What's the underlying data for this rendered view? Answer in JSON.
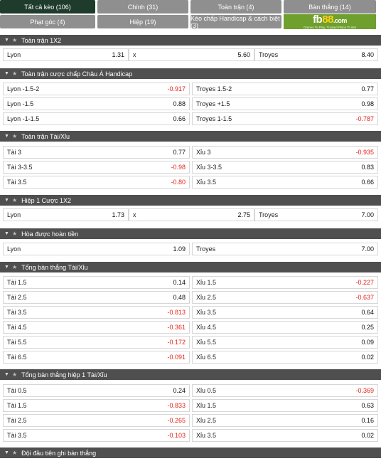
{
  "tabs": {
    "row1": [
      "Tất cả kèo (106)",
      "Chính (31)",
      "Toàn trận (4)",
      "Bàn thắng (14)"
    ],
    "row2": [
      "Phạt góc (4)",
      "Hiệp (19)",
      "Kèo chấp Handicap & cách biệt (3)"
    ]
  },
  "logo": {
    "fb": "fb",
    "n88": "88",
    "com": ".com",
    "tagline": "Games To Play, Trusted Place To Bet"
  },
  "sections": [
    {
      "title": "Toàn trận 1X2",
      "rows": [
        [
          [
            "Lyon",
            "1.31"
          ],
          [
            "x",
            "5.60"
          ],
          [
            "Troyes",
            "8.40"
          ]
        ]
      ]
    },
    {
      "title": "Toàn trận cược chấp Châu Á Handicap",
      "rows": [
        [
          [
            "Lyon -1.5-2",
            "-0.917"
          ],
          [
            "Troyes 1.5-2",
            "0.77"
          ]
        ],
        [
          [
            "Lyon -1.5",
            "0.88"
          ],
          [
            "Troyes +1.5",
            "0.98"
          ]
        ],
        [
          [
            "Lyon -1-1.5",
            "0.66"
          ],
          [
            "Troyes 1-1.5",
            "-0.787"
          ]
        ]
      ]
    },
    {
      "title": "Toàn trận Tài/Xỉu",
      "rows": [
        [
          [
            "Tài 3",
            "0.77"
          ],
          [
            "Xỉu 3",
            "-0.935"
          ]
        ],
        [
          [
            "Tài 3-3.5",
            "-0.98"
          ],
          [
            "Xỉu 3-3.5",
            "0.83"
          ]
        ],
        [
          [
            "Tài 3.5",
            "-0.80"
          ],
          [
            "Xỉu 3.5",
            "0.66"
          ]
        ]
      ]
    },
    {
      "title": "Hiệp 1 Cược 1X2",
      "rows": [
        [
          [
            "Lyon",
            "1.73"
          ],
          [
            "x",
            "2.75"
          ],
          [
            "Troyes",
            "7.00"
          ]
        ]
      ]
    },
    {
      "title": "Hòa được hoàn tiền",
      "rows": [
        [
          [
            "Lyon",
            "1.09"
          ],
          [
            "Troyes",
            "7.00"
          ]
        ]
      ]
    },
    {
      "title": "Tổng bàn thắng Tài/Xỉu",
      "rows": [
        [
          [
            "Tài 1.5",
            "0.14"
          ],
          [
            "Xỉu 1.5",
            "-0.227"
          ]
        ],
        [
          [
            "Tài 2.5",
            "0.48"
          ],
          [
            "Xỉu 2.5",
            "-0.637"
          ]
        ],
        [
          [
            "Tài 3.5",
            "-0.813"
          ],
          [
            "Xỉu 3.5",
            "0.64"
          ]
        ],
        [
          [
            "Tài 4.5",
            "-0.361"
          ],
          [
            "Xỉu 4.5",
            "0.25"
          ]
        ],
        [
          [
            "Tài 5.5",
            "-0.172"
          ],
          [
            "Xỉu 5.5",
            "0.09"
          ]
        ],
        [
          [
            "Tài 6.5",
            "-0.091"
          ],
          [
            "Xỉu 6.5",
            "0.02"
          ]
        ]
      ]
    },
    {
      "title": "Tổng bàn thắng hiệp 1 Tài/Xỉu",
      "rows": [
        [
          [
            "Tài 0.5",
            "0.24"
          ],
          [
            "Xỉu 0.5",
            "-0.369"
          ]
        ],
        [
          [
            "Tài 1.5",
            "-0.833"
          ],
          [
            "Xỉu 1.5",
            "0.63"
          ]
        ],
        [
          [
            "Tài 2.5",
            "-0.265"
          ],
          [
            "Xỉu 2.5",
            "0.16"
          ]
        ],
        [
          [
            "Tài 3.5",
            "-0.103"
          ],
          [
            "Xỉu 3.5",
            "0.02"
          ]
        ]
      ]
    },
    {
      "title": "Đội đầu tiên ghi bàn thắng",
      "rows": []
    }
  ],
  "colors": {
    "active_tab": "#1e3b2c",
    "tab": "#8f8f8f",
    "header": "#4f4f4f",
    "negative": "#e2231a",
    "logo_bg": "#6f9f2d"
  },
  "icons": {
    "collapse": "caret-down-icon",
    "favorite": "star-icon"
  }
}
